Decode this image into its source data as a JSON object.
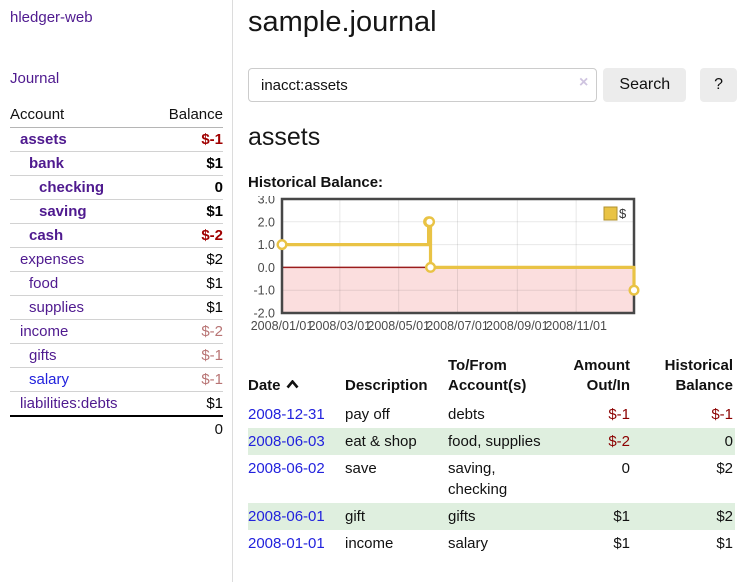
{
  "app": {
    "brand": "hledger-web"
  },
  "sidebar": {
    "journal_link": "Journal",
    "accounts_table": {
      "account_header": "Account",
      "balance_header": "Balance",
      "rows": [
        {
          "label": "assets",
          "balance": "$-1",
          "cls": "d1 inacct"
        },
        {
          "label": "bank",
          "balance": "$1",
          "cls": "d2 inacct"
        },
        {
          "label": "checking",
          "balance": "0",
          "cls": "d3 inacct"
        },
        {
          "label": "saving",
          "balance": "$1",
          "cls": "d3 inacct"
        },
        {
          "label": "cash",
          "balance": "$-2",
          "cls": "d2 inacct"
        },
        {
          "label": "expenses",
          "balance": "$2",
          "cls": "d1"
        },
        {
          "label": "food",
          "balance": "$1",
          "cls": "d2"
        },
        {
          "label": "supplies",
          "balance": "$1",
          "cls": "d2"
        },
        {
          "label": "income",
          "balance": "$-2",
          "cls": "d1"
        },
        {
          "label": "gifts",
          "balance": "$-1",
          "cls": "d2"
        },
        {
          "label": "salary",
          "balance": "$-1",
          "cls": "d2 unvisited"
        },
        {
          "label": "liabilities:debts",
          "balance": "$1",
          "cls": "d1"
        }
      ],
      "total": "0"
    }
  },
  "header": {
    "title": "sample.journal"
  },
  "search": {
    "query": "inacct:assets",
    "clear_icon": "×",
    "search_button": "Search",
    "help_button": "?"
  },
  "account_page": {
    "heading": "assets",
    "chart_title": "Historical Balance:"
  },
  "chart_data": {
    "type": "line",
    "step": true,
    "title": "Historical Balance:",
    "series": [
      {
        "name": "$",
        "color": "#e9c345",
        "points": [
          [
            "2008-01-01",
            1
          ],
          [
            "2008-06-01",
            2
          ],
          [
            "2008-06-02",
            2
          ],
          [
            "2008-06-03",
            0
          ],
          [
            "2008-12-31",
            -1
          ]
        ]
      }
    ],
    "xlim": [
      "2008-01-01",
      "2008-12-31"
    ],
    "ylim": [
      -2.0,
      3.0
    ],
    "yticks": [
      3.0,
      2.0,
      1.0,
      0.0,
      -1.0,
      -2.0
    ],
    "xticks": [
      "2008/01/01",
      "2008/03/01",
      "2008/05/01",
      "2008/07/01",
      "2008/09/01",
      "2008/11/01"
    ],
    "grid": true,
    "legend_position": "top-right",
    "negative_fill": "#fbdede",
    "zero_line_color": "#9b1c1c",
    "border_color": "#474747",
    "grid_color": "rgba(0,0,0,0.09)"
  },
  "register": {
    "headers": [
      "Date",
      "Description",
      "To/From Account(s)",
      "Amount Out/In",
      "Historical Balance"
    ],
    "rows": [
      {
        "date": "2008-12-31",
        "description": "pay off",
        "accounts": "debts",
        "amount": "$-1",
        "balance": "$-1"
      },
      {
        "date": "2008-06-03",
        "description": "eat & shop",
        "accounts": "food, supplies",
        "amount": "$-2",
        "balance": "0"
      },
      {
        "date": "2008-06-02",
        "description": "save",
        "accounts": "saving, checking",
        "amount": "0",
        "balance": "$2"
      },
      {
        "date": "2008-06-01",
        "description": "gift",
        "accounts": "gifts",
        "amount": "$1",
        "balance": "$2"
      },
      {
        "date": "2008-01-01",
        "description": "income",
        "accounts": "salary",
        "amount": "$1",
        "balance": "$1"
      }
    ]
  }
}
